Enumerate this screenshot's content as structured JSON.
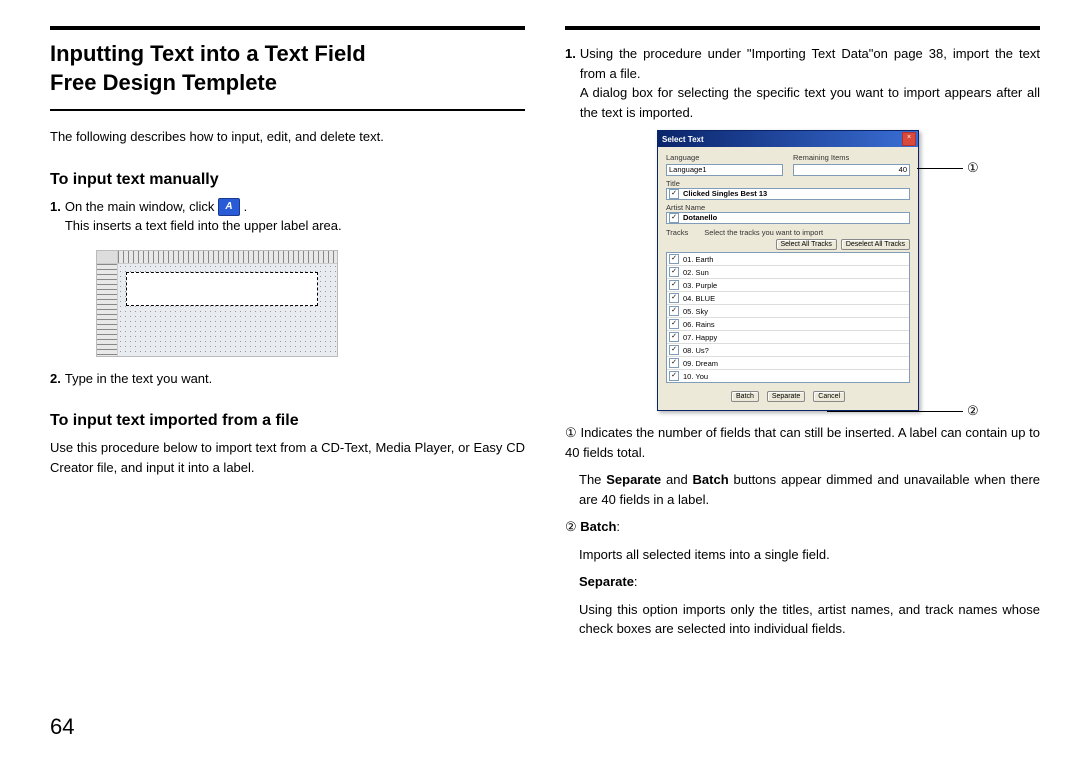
{
  "pageNumber": "64",
  "left": {
    "title_line1": "Inputting Text into a Text Field",
    "title_line2": "Free Design Templete",
    "intro": "The following describes how to input, edit, and delete text.",
    "h2_a": "To input text manually",
    "step1_prefix": "1.",
    "step1_a": "On the main window, click ",
    "step1_icon": "A",
    "step1_b": ".",
    "step1_c": "This inserts a text field into the upper label area.",
    "step2_prefix": "2.",
    "step2": "Type in the text you want.",
    "h2_b": "To input text imported from a file",
    "import_desc": "Use this procedure below to import text from a CD-Text, Media Player, or Easy CD Creator file, and input it into a label."
  },
  "right": {
    "step1_prefix": "1.",
    "step1_a": "Using the procedure under \"Importing Text Data\"on page 38, import the text from a file.",
    "step1_b": "A dialog box for selecting the specific text you want to import appears after all the text is imported.",
    "dialog": {
      "title": "Select Text",
      "lbl_language": "Language",
      "lbl_remaining": "Remaining Items",
      "val_language": "Language1",
      "val_remaining": "40",
      "lbl_title": "Title",
      "val_title": "Clicked Singles Best 13",
      "lbl_artist": "Artist Name",
      "val_artist": "Dotanello",
      "lbl_tracks": "Tracks",
      "lbl_tracks_hint": "Select the tracks you want to import",
      "btn_select_all": "Select All Tracks",
      "btn_deselect_all": "Deselect All Tracks",
      "tracks": [
        "01. Earth",
        "02. Sun",
        "03. Purple",
        "04. BLUE",
        "05. Sky",
        "06. Rains",
        "07. Happy",
        "08. Us?",
        "09. Dream",
        "10. You"
      ],
      "btn_batch": "Batch",
      "btn_separate": "Separate",
      "btn_cancel": "Cancel",
      "checkbox_mark": "✓"
    },
    "callout1": "①",
    "callout2": "②",
    "desc1_prefix": "①",
    "desc1": "Indicates the number of fields that can still be inserted. A label can contain up to 40 fields total.",
    "desc1b_a": "The ",
    "desc1b_sep": "Separate",
    "desc1b_mid": " and ",
    "desc1b_batch": "Batch",
    "desc1b_b": " buttons appear dimmed and unavailable when there are 40 fields in a label.",
    "desc2_prefix": "②",
    "desc2_batch_label": "Batch",
    "desc2_batch_colon": ":",
    "desc2_batch": "Imports all selected items into a single field.",
    "desc2_sep_label": "Separate",
    "desc2_sep_colon": ":",
    "desc2_sep": "Using this option imports only the titles, artist names, and track names whose check boxes are selected into individual fields."
  },
  "colors": {
    "rule": "#000000",
    "titlebar_a": "#0a246a",
    "titlebar_b": "#3a6ed5",
    "dialog_bg": "#ece9d8",
    "field_border": "#7f9db9",
    "icon_bg": "#2a5bd7",
    "close_btn": "#d84b3c"
  }
}
